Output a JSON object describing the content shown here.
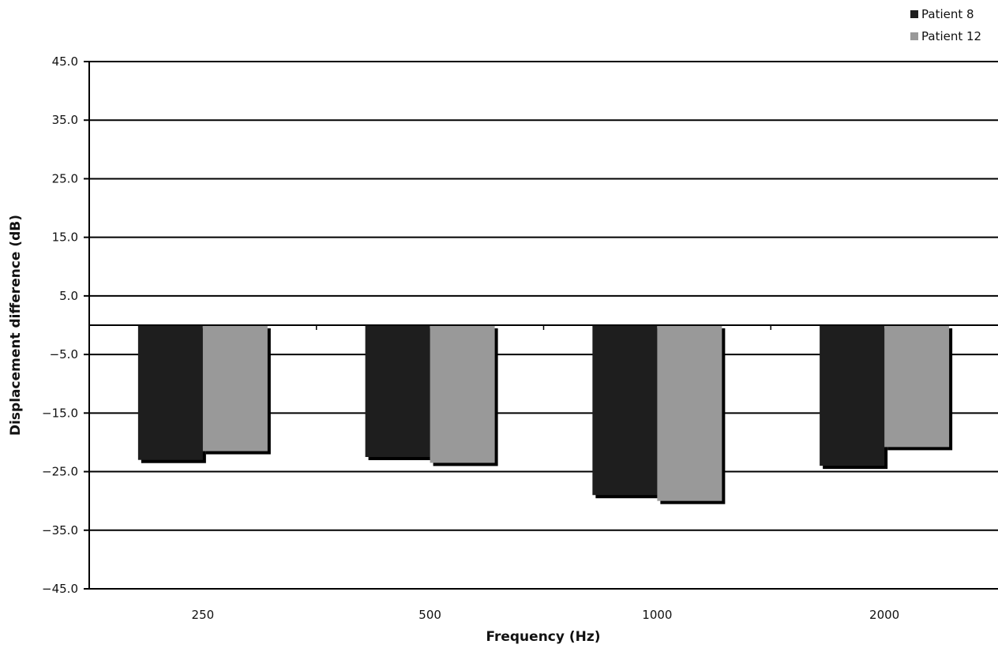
{
  "chart_data": {
    "type": "bar",
    "categories": [
      "250",
      "500",
      "1000",
      "2000"
    ],
    "series": [
      {
        "name": "Patient 8",
        "values": [
          -23.0,
          -22.5,
          -29.0,
          -24.0
        ]
      },
      {
        "name": "Patient 12",
        "values": [
          -21.5,
          -23.5,
          -30.0,
          -20.8
        ]
      }
    ],
    "xlabel": "Frequency (Hz)",
    "ylabel": "Displacement difference (dB)",
    "ylim": [
      -45,
      45
    ],
    "yticks": [
      45,
      35,
      25,
      15,
      5,
      -5,
      -15,
      -25,
      -35,
      -45
    ],
    "ytick_labels": [
      "45.0",
      "35.0",
      "25.0",
      "15.0",
      "5.0",
      "−5.0",
      "−15.0",
      "−25.0",
      "−35.0",
      "−45.0"
    ],
    "grid": true,
    "legend": "top-right",
    "colors": {
      "Patient 8": "#1e1e1e",
      "Patient 12": "#999999",
      "shadow": "#000000"
    }
  }
}
